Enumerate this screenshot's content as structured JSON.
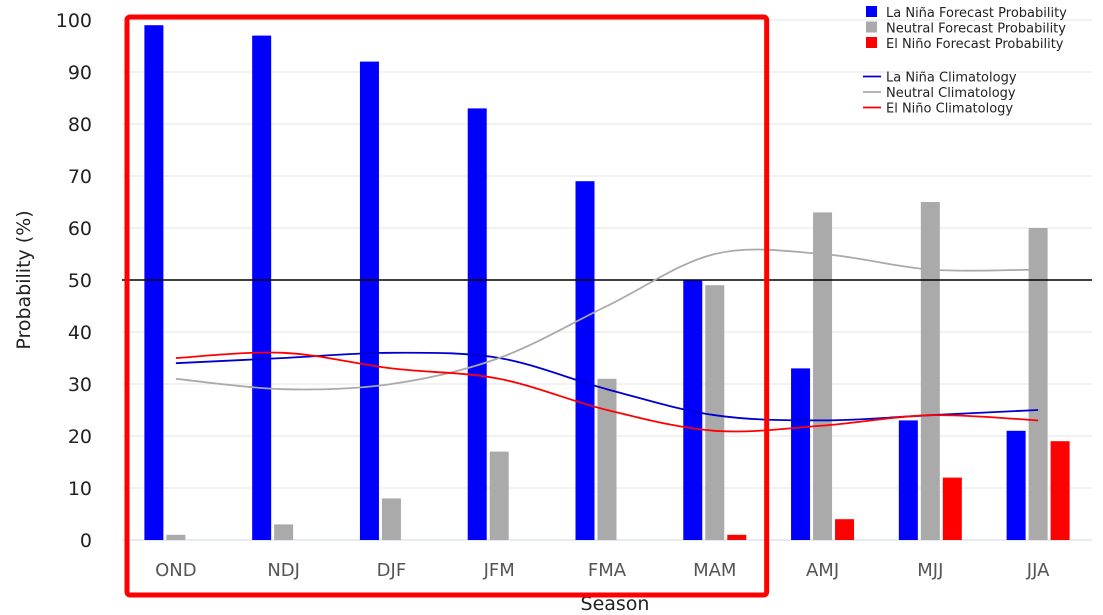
{
  "chart_data": {
    "type": "bar",
    "title": "",
    "xlabel": "Season",
    "ylabel": "Probability (%)",
    "ylim": [
      0,
      100
    ],
    "yticks": [
      0,
      10,
      20,
      30,
      40,
      50,
      60,
      70,
      80,
      90,
      100
    ],
    "grid": true,
    "reference_line": 50,
    "categories": [
      "OND",
      "NDJ",
      "DJF",
      "JFM",
      "FMA",
      "MAM",
      "AMJ",
      "MJJ",
      "JJA"
    ],
    "series": [
      {
        "name": "La Niña Forecast Probability",
        "kind": "bar",
        "color": "#0000ff",
        "values": [
          99,
          97,
          92,
          83,
          69,
          50,
          33,
          23,
          21
        ]
      },
      {
        "name": "Neutral Forecast Probability",
        "kind": "bar",
        "color": "#aaaaaa",
        "values": [
          1,
          3,
          8,
          17,
          31,
          49,
          63,
          65,
          60
        ]
      },
      {
        "name": "El Niño Forecast Probability",
        "kind": "bar",
        "color": "#ff0000",
        "values": [
          0,
          0,
          0,
          0,
          0,
          1,
          4,
          12,
          19
        ]
      },
      {
        "name": "La Niña Climatology",
        "kind": "line",
        "color": "#0000cc",
        "values": [
          34,
          35,
          36,
          35,
          29,
          24,
          23,
          24,
          25
        ]
      },
      {
        "name": "Neutral Climatology",
        "kind": "line",
        "color": "#aaaaaa",
        "values": [
          31,
          29,
          30,
          35,
          45,
          55,
          55,
          52,
          52
        ]
      },
      {
        "name": "El Niño Climatology",
        "kind": "line",
        "color": "#ff0000",
        "values": [
          35,
          36,
          33,
          31,
          25,
          21,
          22,
          24,
          23
        ]
      }
    ],
    "legend": "top-right",
    "highlight": {
      "categories": [
        "OND",
        "NDJ",
        "DJF",
        "JFM",
        "FMA",
        "MAM"
      ],
      "color": "#ff0000"
    }
  }
}
